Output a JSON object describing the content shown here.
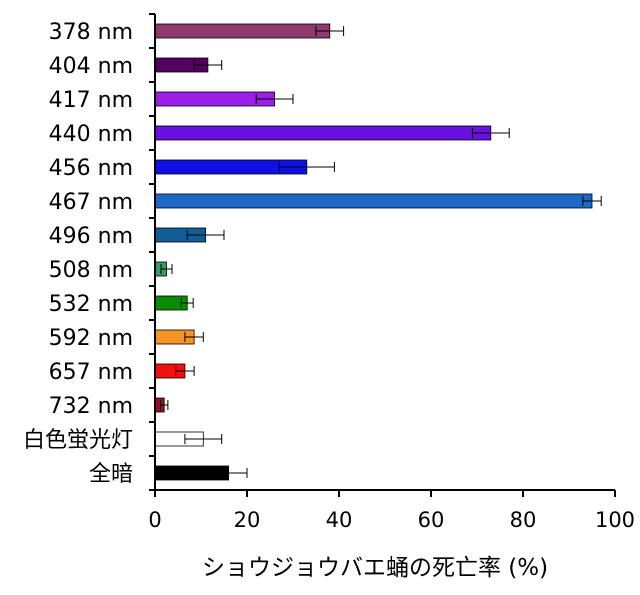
{
  "chart_data": {
    "type": "bar",
    "orientation": "horizontal",
    "categories": [
      "378 nm",
      "404 nm",
      "417 nm",
      "440 nm",
      "456 nm",
      "467 nm",
      "496 nm",
      "508 nm",
      "532 nm",
      "592 nm",
      "657 nm",
      "732 nm",
      "白色蛍光灯",
      "全暗"
    ],
    "values": [
      38,
      11.5,
      26,
      73,
      33,
      95,
      11,
      2.5,
      7,
      8.5,
      6.5,
      2,
      10.5,
      16
    ],
    "errors": [
      3,
      3,
      4,
      4,
      6,
      2,
      4,
      1.2,
      1.3,
      2,
      2,
      0.8,
      4,
      4
    ],
    "colors": [
      "#8e3a6e",
      "#54005e",
      "#9b1fe8",
      "#6a10e0",
      "#0f10e6",
      "#1e68c8",
      "#115e96",
      "#3b9a61",
      "#098b05",
      "#f49524",
      "#f20f0f",
      "#9c0e2a",
      "#ffffff",
      "#000000"
    ],
    "xlabel": "ショウジョウバエ蛹の死亡率 (%)",
    "ylabel": "",
    "xlim": [
      0,
      100
    ],
    "xticks": [
      0,
      20,
      40,
      60,
      80,
      100
    ],
    "grid": false,
    "legend": "none"
  }
}
